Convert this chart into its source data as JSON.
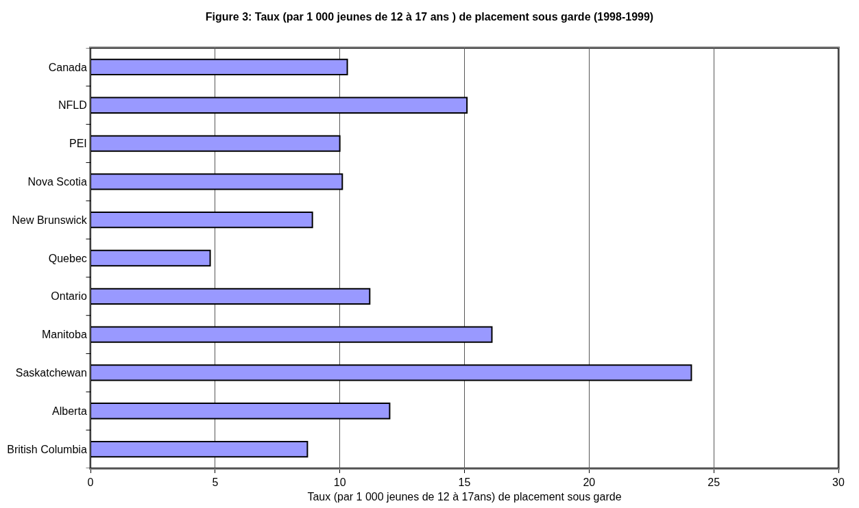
{
  "chart_data": {
    "type": "bar",
    "orientation": "horizontal",
    "title": "Figure 3: Taux (par 1 000 jeunes de 12 à 17 ans ) de placement sous garde (1998-1999)",
    "xlabel": "Taux (par 1 000 jeunes de 12 à 17ans) de placement sous garde",
    "categories": [
      "Canada",
      "NFLD",
      "PEI",
      "Nova Scotia",
      "New Brunswick",
      "Quebec",
      "Ontario",
      "Manitoba",
      "Saskatchewan",
      "Alberta",
      "British Columbia"
    ],
    "values": [
      10.3,
      15.1,
      10.0,
      10.1,
      8.9,
      4.8,
      11.2,
      16.1,
      24.1,
      12.0,
      8.7
    ],
    "color": "#9999ff",
    "xlim": [
      0,
      30
    ],
    "xticks": [
      0,
      5,
      10,
      15,
      20,
      25,
      30
    ],
    "grid": "x"
  }
}
